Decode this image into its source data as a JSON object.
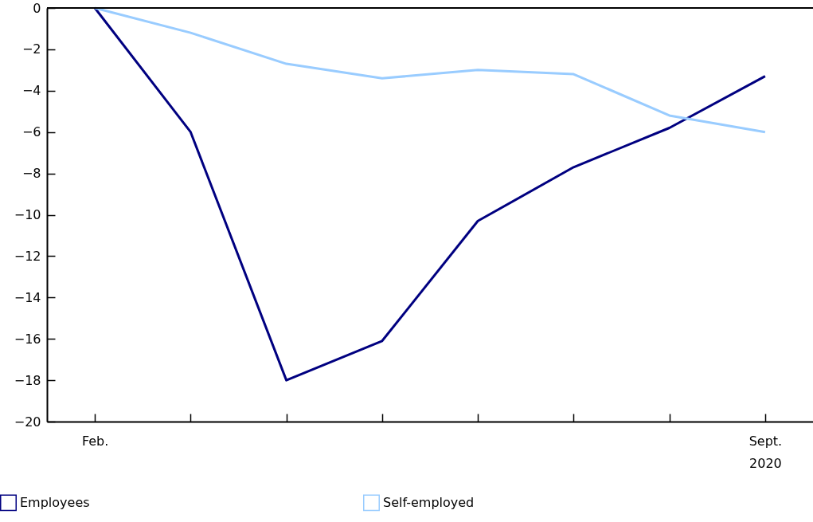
{
  "chart_data": {
    "type": "line",
    "categories": [
      "Feb.",
      null,
      null,
      null,
      null,
      null,
      null,
      "Sept.\n2020"
    ],
    "series": [
      {
        "name": "Employees",
        "color": "#000080",
        "values": [
          0,
          -6.0,
          -18.0,
          -16.1,
          -10.3,
          -7.7,
          -5.8,
          -3.3
        ]
      },
      {
        "name": "Self-employed",
        "color": "#99ccff",
        "values": [
          0,
          -1.2,
          -2.7,
          -3.4,
          -3.0,
          -3.2,
          -5.2,
          -6.0
        ]
      }
    ],
    "ylim": [
      -20,
      0
    ],
    "yticks": [
      -20,
      -18,
      -16,
      -14,
      -12,
      -10,
      -8,
      -6,
      -4,
      -2,
      0
    ],
    "ref_lines": [
      {
        "axis": "y",
        "value": 0
      }
    ],
    "grid": false,
    "legend": "bottom",
    "marker": "none",
    "line_style": "solid"
  }
}
